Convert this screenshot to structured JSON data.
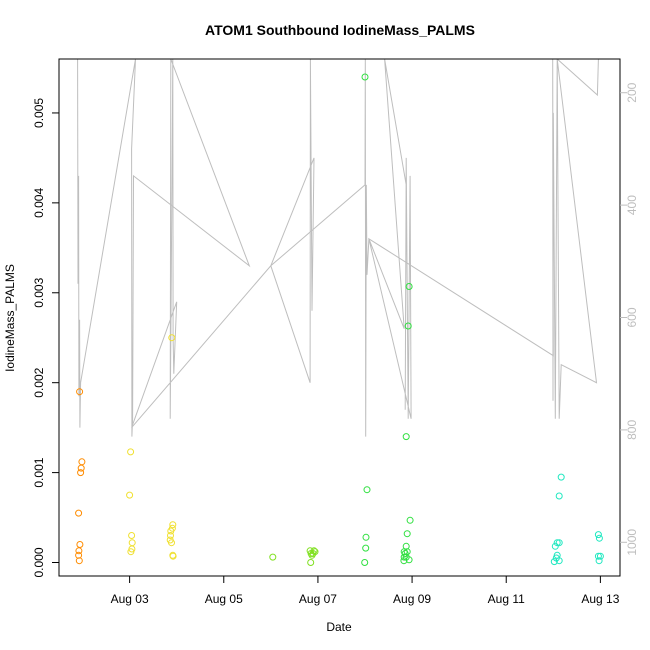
{
  "chart_data": {
    "type": "scatter",
    "title": "ATOM1 Southbound IodineMass_PALMS",
    "xlabel": "Date",
    "ylabel": "IodineMass_PALMS",
    "xlim": [
      "2016-08-01T12:00",
      "2016-08-13T10:00"
    ],
    "ylim": [
      -0.00015,
      0.0056
    ],
    "y2lim": [
      1060,
      140
    ],
    "x_ticks": [
      {
        "label": "Aug 03",
        "date": "2016-08-03T00:00"
      },
      {
        "label": "Aug 05",
        "date": "2016-08-05T00:00"
      },
      {
        "label": "Aug 07",
        "date": "2016-08-07T00:00"
      },
      {
        "label": "Aug 09",
        "date": "2016-08-09T00:00"
      },
      {
        "label": "Aug 11",
        "date": "2016-08-11T00:00"
      },
      {
        "label": "Aug 13",
        "date": "2016-08-13T00:00"
      }
    ],
    "y_ticks": [
      {
        "label": "0.000",
        "value": 0.0
      },
      {
        "label": "0.001",
        "value": 0.001
      },
      {
        "label": "0.002",
        "value": 0.002
      },
      {
        "label": "0.003",
        "value": 0.003
      },
      {
        "label": "0.004",
        "value": 0.004
      },
      {
        "label": "0.005",
        "value": 0.005
      }
    ],
    "y2_ticks": [
      {
        "label": "200",
        "value": 200
      },
      {
        "label": "400",
        "value": 400
      },
      {
        "label": "600",
        "value": 600
      },
      {
        "label": "800",
        "value": 800
      },
      {
        "label": "1000",
        "value": 1000
      }
    ],
    "colors": {
      "axis": "#000000",
      "pressure_line": "#bebebe",
      "right_axis": "#bebebe"
    },
    "grid": false,
    "series": [
      {
        "color": "#ff8c00",
        "points": [
          [
            "2016-08-01T22:30",
            0.0019
          ],
          [
            "2016-08-01T22:00",
            0.00055
          ],
          [
            "2016-08-01T23:00",
            0.001
          ],
          [
            "2016-08-01T23:20",
            0.00105
          ],
          [
            "2016-08-01T23:40",
            0.00112
          ],
          [
            "2016-08-01T22:40",
            0.0002
          ],
          [
            "2016-08-01T22:10",
            0.00013
          ],
          [
            "2016-08-01T22:00",
            8e-05
          ],
          [
            "2016-08-01T22:20",
            2e-05
          ]
        ]
      },
      {
        "color": "#f0e030",
        "points": [
          [
            "2016-08-03T00:30",
            0.00123
          ],
          [
            "2016-08-03T00:00",
            0.00075
          ],
          [
            "2016-08-03T01:00",
            0.0003
          ],
          [
            "2016-08-03T01:20",
            0.00022
          ],
          [
            "2016-08-03T01:10",
            0.00015
          ],
          [
            "2016-08-03T00:40",
            0.00012
          ],
          [
            "2016-08-03T21:30",
            0.0025
          ],
          [
            "2016-08-03T21:00",
            0.00035
          ],
          [
            "2016-08-03T22:00",
            0.00042
          ],
          [
            "2016-08-03T21:50",
            0.00038
          ],
          [
            "2016-08-03T20:50",
            0.0003
          ],
          [
            "2016-08-03T20:40",
            0.00025
          ],
          [
            "2016-08-03T21:20",
            0.00022
          ],
          [
            "2016-08-03T22:00",
            8e-05
          ],
          [
            "2016-08-03T22:10",
            7e-05
          ]
        ]
      },
      {
        "color": "#80e020",
        "points": [
          [
            "2016-08-06T01:00",
            6e-05
          ],
          [
            "2016-08-06T20:00",
            0.00013
          ],
          [
            "2016-08-06T20:30",
            0.0001
          ],
          [
            "2016-08-06T21:00",
            8e-05
          ],
          [
            "2016-08-06T21:30",
            0.0001
          ],
          [
            "2016-08-06T22:00",
            0.00013
          ],
          [
            "2016-08-06T22:30",
            0.00012
          ],
          [
            "2016-08-06T20:20",
            0.0
          ]
        ]
      },
      {
        "color": "#30e040",
        "points": [
          [
            "2016-08-08T00:00",
            0.0054
          ],
          [
            "2016-08-08T01:00",
            0.00081
          ],
          [
            "2016-08-08T00:30",
            0.00028
          ],
          [
            "2016-08-08T00:20",
            0.00016
          ],
          [
            "2016-08-07T23:50",
            0.0
          ],
          [
            "2016-08-08T22:30",
            0.00307
          ],
          [
            "2016-08-08T22:00",
            0.00263
          ],
          [
            "2016-08-08T21:00",
            0.0014
          ],
          [
            "2016-08-08T23:00",
            0.00047
          ],
          [
            "2016-08-08T21:30",
            0.00032
          ],
          [
            "2016-08-08T21:00",
            0.00018
          ],
          [
            "2016-08-08T20:00",
            0.00012
          ],
          [
            "2016-08-08T20:30",
            0.0001
          ],
          [
            "2016-08-08T21:30",
            0.00012
          ],
          [
            "2016-08-08T21:00",
            6e-05
          ],
          [
            "2016-08-08T20:00",
            6e-05
          ],
          [
            "2016-08-08T22:30",
            3e-05
          ],
          [
            "2016-08-08T19:50",
            2e-05
          ]
        ]
      },
      {
        "color": "#20e8c0",
        "points": [
          [
            "2016-08-12T04:00",
            0.00095
          ],
          [
            "2016-08-12T03:00",
            0.00074
          ],
          [
            "2016-08-12T02:00",
            0.00022
          ],
          [
            "2016-08-12T03:00",
            0.00022
          ],
          [
            "2016-08-12T01:00",
            0.00018
          ],
          [
            "2016-08-12T02:00",
            8e-05
          ],
          [
            "2016-08-12T01:30",
            5e-05
          ],
          [
            "2016-08-12T03:00",
            2e-05
          ],
          [
            "2016-08-12T00:30",
            1e-05
          ],
          [
            "2016-08-12T23:00",
            0.00031
          ],
          [
            "2016-08-12T23:30",
            0.00027
          ],
          [
            "2016-08-12T23:00",
            7e-05
          ],
          [
            "2016-08-13T00:00",
            7e-05
          ],
          [
            "2016-08-12T23:20",
            2e-05
          ]
        ]
      }
    ],
    "pressure_line": [
      [
        "2016-08-01T21:30",
        0.0056
      ],
      [
        "2016-08-01T21:40",
        0.0031
      ],
      [
        "2016-08-01T22:00",
        0.0043
      ],
      [
        "2016-08-01T22:10",
        0.00185
      ],
      [
        "2016-08-01T22:30",
        0.0027
      ],
      [
        "2016-08-01T22:40",
        0.0015
      ],
      [
        "2016-08-01T23:00",
        0.002
      ],
      [
        "2016-08-03T03:00",
        0.0056
      ],
      [
        "2016-08-03T01:00",
        0.0046
      ],
      [
        "2016-08-03T01:10",
        0.0014
      ],
      [
        "2016-08-03T01:30",
        0.0016
      ],
      [
        "2016-08-03T02:00",
        0.0043
      ],
      [
        "2016-08-05T13:00",
        0.0033
      ],
      [
        "2016-08-03T21:00",
        0.0056
      ],
      [
        "2016-08-03T20:40",
        0.0016
      ],
      [
        "2016-08-03T21:10",
        0.0029
      ],
      [
        "2016-08-03T22:00",
        0.0056
      ],
      [
        "2016-08-03T22:10",
        0.0025
      ],
      [
        "2016-08-03T22:30",
        0.0021
      ],
      [
        "2016-08-04T00:00",
        0.0029
      ],
      [
        "2016-08-03T01:00",
        0.0015
      ],
      [
        "2016-08-06T00:00",
        0.0033
      ],
      [
        "2016-08-06T20:00",
        0.002
      ],
      [
        "2016-08-06T20:10",
        0.0056
      ],
      [
        "2016-08-06T21:00",
        0.0028
      ],
      [
        "2016-08-06T22:00",
        0.0045
      ],
      [
        "2016-08-06T00:00",
        0.0033
      ],
      [
        "2016-08-08T00:00",
        0.0042
      ],
      [
        "2016-08-08T00:10",
        0.0056
      ],
      [
        "2016-08-08T00:20",
        0.0014
      ],
      [
        "2016-08-08T00:40",
        0.0042
      ],
      [
        "2016-08-08T01:00",
        0.0032
      ],
      [
        "2016-08-08T02:00",
        0.0036
      ],
      [
        "2016-08-08T20:00",
        0.0026
      ],
      [
        "2016-08-08T10:00",
        0.0056
      ],
      [
        "2016-08-08T21:00",
        0.0042
      ],
      [
        "2016-08-08T20:30",
        0.0017
      ],
      [
        "2016-08-08T21:00",
        0.0045
      ],
      [
        "2016-08-08T22:00",
        0.0016
      ],
      [
        "2016-08-08T23:00",
        0.0043
      ],
      [
        "2016-08-08T23:30",
        0.0016
      ],
      [
        "2016-08-08T02:00",
        0.0036
      ],
      [
        "2016-08-12T00:00",
        0.0023
      ],
      [
        "2016-08-11T23:40",
        0.0056
      ],
      [
        "2016-08-11T23:50",
        0.0018
      ],
      [
        "2016-08-12T00:00",
        0.005
      ],
      [
        "2016-08-12T01:00",
        0.0016
      ],
      [
        "2016-08-12T02:00",
        0.0056
      ],
      [
        "2016-08-12T03:00",
        0.0016
      ],
      [
        "2016-08-12T04:00",
        0.0022
      ],
      [
        "2016-08-12T22:00",
        0.002
      ],
      [
        "2016-08-12T02:00",
        0.0056
      ],
      [
        "2016-08-12T22:30",
        0.0052
      ],
      [
        "2016-08-12T23:00",
        0.0056
      ]
    ]
  }
}
